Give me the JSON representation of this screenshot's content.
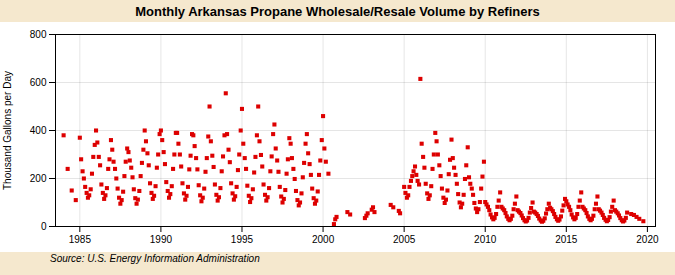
{
  "chart_data": {
    "type": "scatter",
    "title": "Monthly Arkansas Propane Wholesale/Resale Volume by Refiners",
    "ylabel": "Thousand Gallons per Day",
    "caption": "Source: U.S. Energy Information Administration",
    "color": "#dd0000",
    "marker": "square",
    "grid": true,
    "xlim": [
      1983.5,
      2020.5
    ],
    "ylim": [
      0,
      800
    ],
    "xticks": [
      1985,
      1990,
      1995,
      2000,
      2005,
      2010,
      2015,
      2020
    ],
    "yticks": [
      0,
      200,
      400,
      600,
      800
    ],
    "x": [
      1984.0,
      1984.25,
      1984.5,
      1984.75,
      1985.0,
      1985.08,
      1985.17,
      1985.25,
      1985.33,
      1985.42,
      1985.5,
      1985.58,
      1985.67,
      1985.75,
      1985.83,
      1985.92,
      1986.0,
      1986.08,
      1986.17,
      1986.25,
      1986.33,
      1986.42,
      1986.5,
      1986.58,
      1986.67,
      1986.75,
      1986.83,
      1986.92,
      1987.0,
      1987.08,
      1987.17,
      1987.25,
      1987.33,
      1987.42,
      1987.5,
      1987.58,
      1987.67,
      1987.75,
      1987.83,
      1987.92,
      1988.0,
      1988.08,
      1988.17,
      1988.25,
      1988.33,
      1988.42,
      1988.5,
      1988.58,
      1988.67,
      1988.75,
      1988.83,
      1988.92,
      1989.0,
      1989.08,
      1989.17,
      1989.25,
      1989.33,
      1989.42,
      1989.5,
      1989.58,
      1989.67,
      1989.75,
      1989.83,
      1989.92,
      1990.0,
      1990.08,
      1990.17,
      1990.25,
      1990.33,
      1990.42,
      1990.5,
      1990.58,
      1990.67,
      1990.75,
      1990.83,
      1990.92,
      1991.0,
      1991.08,
      1991.17,
      1991.25,
      1991.33,
      1991.42,
      1991.5,
      1991.58,
      1991.67,
      1991.75,
      1991.83,
      1991.92,
      1992.0,
      1992.08,
      1992.17,
      1992.25,
      1992.33,
      1992.42,
      1992.5,
      1992.58,
      1992.67,
      1992.75,
      1992.83,
      1992.92,
      1993.0,
      1993.08,
      1993.17,
      1993.25,
      1993.33,
      1993.42,
      1993.5,
      1993.58,
      1993.67,
      1993.75,
      1993.83,
      1993.92,
      1994.0,
      1994.08,
      1994.17,
      1994.25,
      1994.33,
      1994.42,
      1994.5,
      1994.58,
      1994.67,
      1994.75,
      1994.83,
      1994.92,
      1995.0,
      1995.08,
      1995.17,
      1995.25,
      1995.33,
      1995.42,
      1995.5,
      1995.58,
      1995.67,
      1995.75,
      1995.83,
      1995.92,
      1996.0,
      1996.08,
      1996.17,
      1996.25,
      1996.33,
      1996.42,
      1996.5,
      1996.58,
      1996.67,
      1996.75,
      1996.83,
      1996.92,
      1997.0,
      1997.08,
      1997.17,
      1997.25,
      1997.33,
      1997.42,
      1997.5,
      1997.58,
      1997.67,
      1997.75,
      1997.83,
      1997.92,
      1998.0,
      1998.08,
      1998.17,
      1998.25,
      1998.33,
      1998.42,
      1998.5,
      1998.58,
      1998.67,
      1998.75,
      1998.83,
      1998.92,
      1999.0,
      1999.08,
      1999.17,
      1999.25,
      1999.33,
      1999.42,
      1999.5,
      1999.58,
      1999.67,
      1999.75,
      1999.83,
      1999.92,
      2000.0,
      2000.08,
      2000.17,
      2000.33,
      2000.67,
      2000.75,
      2000.83,
      2001.5,
      2001.67,
      2002.58,
      2002.67,
      2002.75,
      2003.0,
      2003.08,
      2003.17,
      2004.17,
      2004.33,
      2004.67,
      2004.75,
      2005.0,
      2005.08,
      2005.17,
      2005.25,
      2005.33,
      2005.42,
      2005.5,
      2005.58,
      2005.67,
      2005.75,
      2005.83,
      2005.92,
      2006.0,
      2006.08,
      2006.17,
      2006.25,
      2006.33,
      2006.42,
      2006.5,
      2006.58,
      2006.67,
      2006.75,
      2006.83,
      2006.92,
      2007.0,
      2007.08,
      2007.17,
      2007.25,
      2007.33,
      2007.42,
      2007.5,
      2007.58,
      2007.67,
      2007.75,
      2007.83,
      2007.92,
      2008.0,
      2008.08,
      2008.17,
      2008.25,
      2008.33,
      2008.42,
      2008.5,
      2008.58,
      2008.67,
      2008.75,
      2008.83,
      2008.92,
      2009.0,
      2009.08,
      2009.17,
      2009.25,
      2009.33,
      2009.42,
      2009.5,
      2009.58,
      2009.67,
      2009.75,
      2009.83,
      2009.92,
      2010.0,
      2010.08,
      2010.17,
      2010.25,
      2010.33,
      2010.42,
      2010.5,
      2010.58,
      2010.67,
      2010.75,
      2010.83,
      2010.92,
      2011.0,
      2011.08,
      2011.17,
      2011.25,
      2011.33,
      2011.42,
      2011.5,
      2011.58,
      2011.67,
      2011.75,
      2011.83,
      2011.92,
      2012.0,
      2012.08,
      2012.17,
      2012.25,
      2012.33,
      2012.42,
      2012.5,
      2012.58,
      2012.67,
      2012.75,
      2012.83,
      2012.92,
      2013.0,
      2013.08,
      2013.17,
      2013.25,
      2013.33,
      2013.42,
      2013.5,
      2013.58,
      2013.67,
      2013.75,
      2013.83,
      2013.92,
      2014.0,
      2014.08,
      2014.17,
      2014.25,
      2014.33,
      2014.42,
      2014.5,
      2014.58,
      2014.67,
      2014.75,
      2014.83,
      2014.92,
      2015.0,
      2015.08,
      2015.17,
      2015.25,
      2015.33,
      2015.42,
      2015.5,
      2015.58,
      2015.67,
      2015.75,
      2015.83,
      2015.92,
      2016.0,
      2016.08,
      2016.17,
      2016.25,
      2016.33,
      2016.42,
      2016.5,
      2016.58,
      2016.67,
      2016.75,
      2016.83,
      2016.92,
      2017.0,
      2017.08,
      2017.17,
      2017.25,
      2017.33,
      2017.42,
      2017.5,
      2017.58,
      2017.67,
      2017.75,
      2017.83,
      2017.92,
      2018.0,
      2018.08,
      2018.17,
      2018.25,
      2018.33,
      2018.42,
      2018.5,
      2018.58,
      2018.67,
      2018.75,
      2019.0,
      2019.17,
      2019.33,
      2019.5,
      2019.75
    ],
    "values": [
      380,
      240,
      150,
      110,
      370,
      280,
      230,
      200,
      165,
      140,
      120,
      130,
      155,
      220,
      290,
      340,
      400,
      350,
      290,
      255,
      175,
      140,
      115,
      130,
      160,
      240,
      280,
      360,
      320,
      270,
      240,
      200,
      158,
      120,
      95,
      110,
      145,
      210,
      270,
      325,
      310,
      275,
      245,
      205,
      155,
      118,
      95,
      112,
      148,
      210,
      265,
      320,
      400,
      355,
      305,
      255,
      180,
      140,
      115,
      128,
      168,
      245,
      300,
      385,
      400,
      360,
      310,
      260,
      185,
      148,
      120,
      135,
      168,
      240,
      300,
      390,
      390,
      345,
      300,
      250,
      180,
      138,
      112,
      128,
      165,
      238,
      295,
      385,
      380,
      335,
      285,
      238,
      172,
      130,
      105,
      120,
      158,
      228,
      285,
      375,
      500,
      355,
      295,
      248,
      175,
      132,
      108,
      122,
      160,
      230,
      292,
      380,
      555,
      385,
      320,
      268,
      180,
      138,
      112,
      126,
      165,
      235,
      300,
      400,
      490,
      345,
      285,
      240,
      170,
      128,
      102,
      118,
      155,
      225,
      290,
      380,
      500,
      355,
      298,
      250,
      175,
      132,
      108,
      122,
      160,
      230,
      292,
      385,
      425,
      325,
      275,
      228,
      165,
      125,
      100,
      115,
      152,
      220,
      280,
      368,
      345,
      285,
      240,
      198,
      148,
      110,
      88,
      100,
      138,
      205,
      265,
      345,
      385,
      305,
      260,
      215,
      158,
      118,
      95,
      108,
      146,
      215,
      275,
      360,
      460,
      325,
      270,
      220,
      10,
      30,
      40,
      60,
      50,
      35,
      45,
      55,
      70,
      80,
      60,
      90,
      80,
      65,
      55,
      165,
      140,
      120,
      130,
      165,
      190,
      210,
      230,
      250,
      215,
      190,
      175,
      615,
      345,
      290,
      245,
      178,
      138,
      115,
      130,
      168,
      240,
      300,
      390,
      355,
      300,
      255,
      210,
      158,
      120,
      98,
      112,
      150,
      218,
      278,
      362,
      285,
      245,
      215,
      178,
      135,
      100,
      80,
      95,
      132,
      198,
      255,
      330,
      205,
      178,
      158,
      132,
      98,
      75,
      60,
      72,
      102,
      158,
      208,
      270,
      102,
      92,
      82,
      68,
      50,
      38,
      30,
      36,
      52,
      82,
      108,
      142,
      82,
      75,
      68,
      56,
      42,
      32,
      26,
      32,
      45,
      72,
      95,
      125,
      68,
      62,
      56,
      46,
      35,
      26,
      21,
      25,
      36,
      58,
      77,
      100,
      62,
      58,
      52,
      44,
      33,
      25,
      20,
      24,
      34,
      54,
      72,
      95,
      78,
      72,
      64,
      52,
      40,
      30,
      24,
      29,
      42,
      66,
      88,
      115,
      105,
      92,
      82,
      68,
      50,
      38,
      30,
      36,
      52,
      82,
      108,
      142,
      82,
      75,
      68,
      56,
      42,
      32,
      26,
      32,
      45,
      72,
      95,
      125,
      72,
      66,
      58,
      48,
      36,
      28,
      22,
      27,
      39,
      62,
      82,
      108,
      68,
      62,
      55,
      46,
      35,
      26,
      21,
      25,
      36,
      58,
      52,
      48,
      40,
      32,
      22
    ]
  }
}
